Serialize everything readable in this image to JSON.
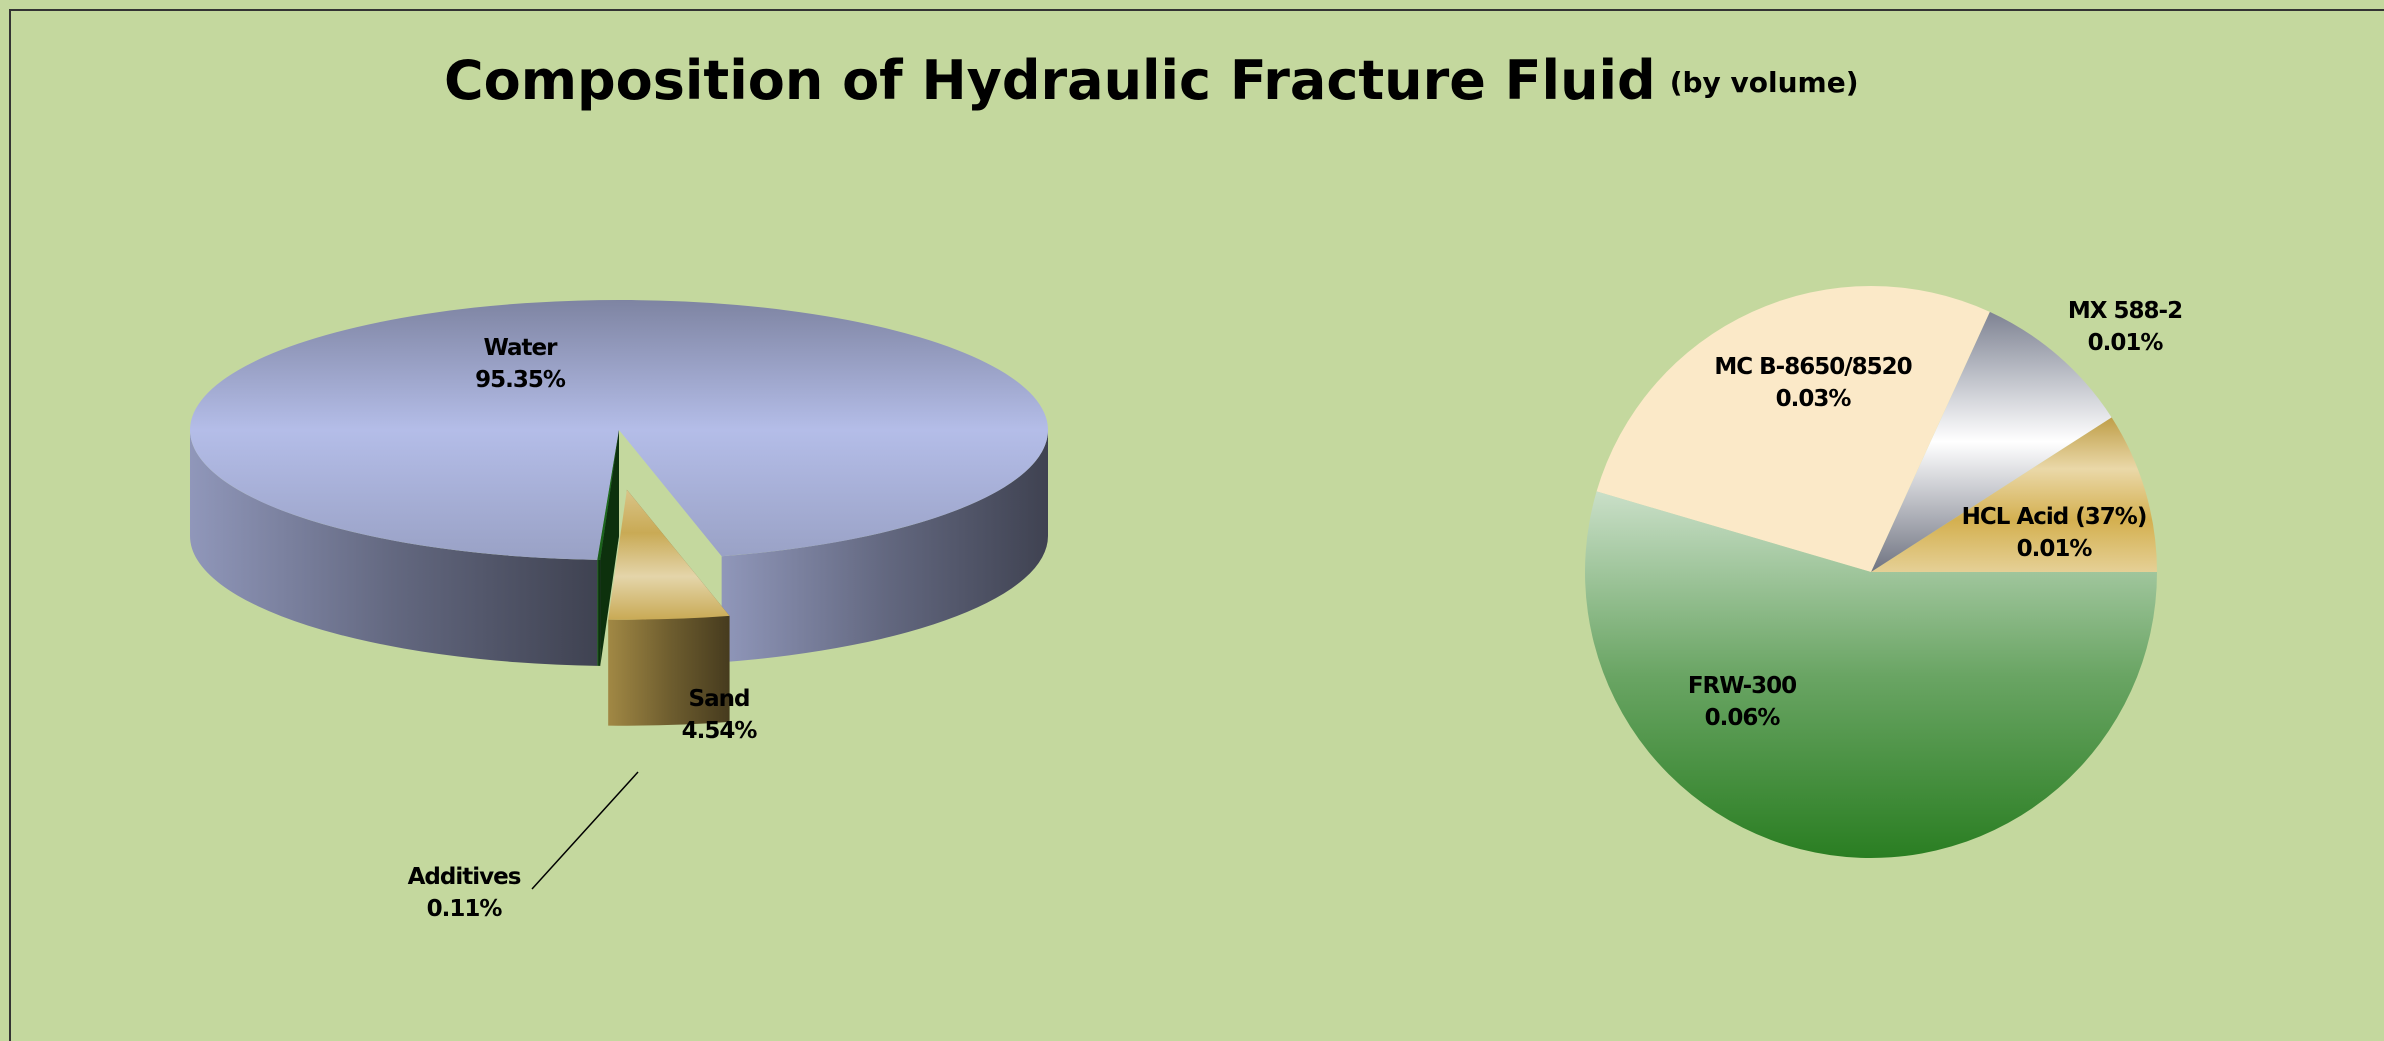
{
  "chart_data": [
    {
      "type": "pie3d",
      "title": "Composition of Hydraulic Fracture Fluid",
      "subtitle": "(by volume)",
      "categories": [
        "Sand",
        "Additives",
        "Water"
      ],
      "values": [
        4.54,
        0.11,
        95.35
      ],
      "value_labels": [
        "4.54%",
        "0.11%",
        "95.35%"
      ],
      "colors": [
        "#c9aa55",
        "#1e6e1e",
        "#b4bde8"
      ]
    },
    {
      "type": "pie",
      "categories": [
        "HCL Acid (37%)",
        "MX 588-2",
        "MC B-8650/8520",
        "FRW-300"
      ],
      "values": [
        0.01,
        0.01,
        0.03,
        0.06
      ],
      "value_labels": [
        "0.01%",
        "0.01%",
        "0.03%",
        "0.06%"
      ],
      "colors": [
        "#d4b050",
        "#9ea4b8",
        "#fbe9c8",
        "#2a7e22"
      ]
    }
  ]
}
